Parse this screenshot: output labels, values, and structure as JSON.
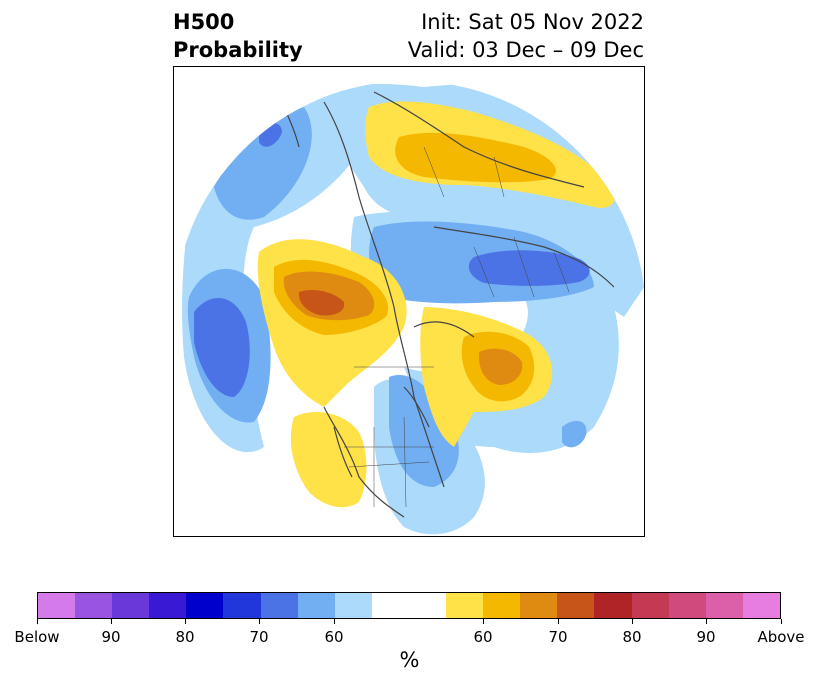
{
  "title": {
    "left_line1": "H500",
    "left_line2": "Probability",
    "right_line1": "Init: Sat 05 Nov 2022",
    "right_line2": "Valid: 03 Dec – 09 Dec"
  },
  "colorbar": {
    "colors": [
      "#d57be9",
      "#9a55e0",
      "#6a37d9",
      "#3a19d4",
      "#0000cd",
      "#2137dc",
      "#4b73e6",
      "#72aef2",
      "#acdafb",
      "#ffffff",
      "#ffffff",
      "#ffe148",
      "#f5b800",
      "#df8a10",
      "#c65517",
      "#b02425",
      "#c43a52",
      "#d04a7e",
      "#dc5faa",
      "#e87de0"
    ],
    "tick_labels": [
      "Below",
      "90",
      "80",
      "70",
      "60",
      "60",
      "70",
      "80",
      "90",
      "Above"
    ],
    "unit": "%"
  },
  "map": {
    "palette": {
      "below_70": "#4b73e6",
      "below_60": "#72aef2",
      "below_50": "#acdafb",
      "above_50": "#ffe148",
      "above_60": "#f5b800",
      "above_70": "#df8a10",
      "above_80": "#c65517",
      "coast": "#444444"
    }
  }
}
